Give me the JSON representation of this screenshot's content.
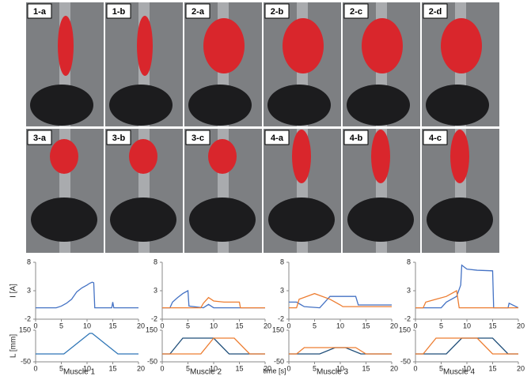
{
  "photos": {
    "labels": [
      "1-a",
      "1-b",
      "2-a",
      "2-b",
      "2-c",
      "2-d",
      "3-a",
      "3-b",
      "3-c",
      "4-a",
      "4-b",
      "4-c"
    ]
  },
  "chart_data": [
    {
      "type": "line",
      "y_label": "I [A]",
      "xlim": [
        0,
        20
      ],
      "xticks": [
        0,
        5,
        10,
        15,
        20
      ],
      "ylim": [
        -2,
        8
      ],
      "yticks": [
        -2,
        3,
        8
      ],
      "series": [
        {
          "color": "#4472c4",
          "x": [
            0,
            4,
            5,
            6,
            7,
            8,
            9,
            10,
            10.5,
            11,
            11.3,
            11.5,
            14.8,
            15,
            15.2,
            20
          ],
          "values": [
            0,
            0,
            0.3,
            0.8,
            1.5,
            2.8,
            3.5,
            4,
            4.3,
            4.5,
            4.4,
            0,
            0,
            1,
            0,
            0
          ]
        }
      ]
    },
    {
      "type": "line",
      "xlim": [
        0,
        20
      ],
      "xticks": [
        0,
        5,
        10,
        15,
        20
      ],
      "ylim": [
        -2,
        8
      ],
      "yticks": [
        -2,
        3,
        8
      ],
      "series": [
        {
          "color": "#4472c4",
          "x": [
            0,
            1.5,
            2,
            3,
            4,
            5,
            5.2,
            8,
            9,
            10,
            14,
            20
          ],
          "values": [
            0,
            0,
            1,
            1.8,
            2.5,
            3,
            0.3,
            0,
            0.6,
            0,
            0,
            0
          ]
        },
        {
          "color": "#ed7d31",
          "x": [
            0,
            7.5,
            8,
            9,
            10,
            12,
            15,
            15.2,
            20
          ],
          "values": [
            0,
            0,
            0.8,
            1.8,
            1.2,
            1,
            1,
            0,
            0
          ]
        }
      ]
    },
    {
      "type": "line",
      "xlim": [
        0,
        20
      ],
      "xticks": [
        0,
        5,
        10,
        15,
        20
      ],
      "ylim": [
        -2,
        8
      ],
      "yticks": [
        -2,
        3,
        8
      ],
      "series": [
        {
          "color": "#4472c4",
          "x": [
            0,
            1.5,
            3,
            6,
            7,
            8,
            13,
            13.5,
            20
          ],
          "values": [
            1,
            1,
            0.2,
            0,
            1,
            2,
            2,
            0.5,
            0.5
          ]
        },
        {
          "color": "#ed7d31",
          "x": [
            0,
            1.5,
            2,
            5,
            8,
            10,
            10.5,
            20
          ],
          "values": [
            0,
            0,
            1.5,
            2.5,
            1.5,
            0.5,
            0.2,
            0.2
          ]
        }
      ]
    },
    {
      "type": "line",
      "xlim": [
        0,
        20
      ],
      "xticks": [
        0,
        5,
        10,
        15,
        20
      ],
      "ylim": [
        -2,
        8
      ],
      "yticks": [
        -2,
        3,
        8
      ],
      "series": [
        {
          "color": "#4472c4",
          "x": [
            0,
            5,
            6,
            8,
            8.8,
            9,
            10,
            12,
            15,
            15.2,
            18,
            18.2,
            20
          ],
          "values": [
            0,
            0,
            1,
            2,
            4,
            7.5,
            6.8,
            6.6,
            6.5,
            0,
            0,
            0.8,
            0
          ]
        },
        {
          "color": "#ed7d31",
          "x": [
            0,
            1.5,
            2,
            4,
            6,
            8,
            8.5,
            20
          ],
          "values": [
            0,
            0,
            1,
            1.5,
            2,
            3,
            0,
            0
          ]
        }
      ]
    },
    {
      "type": "line",
      "title": "Muscle 1",
      "y_label": "L [mm]",
      "xlim": [
        0,
        20
      ],
      "xticks": [
        0,
        5,
        10,
        15,
        20
      ],
      "ylim": [
        -50,
        150
      ],
      "yticks": [
        -50,
        150
      ],
      "series": [
        {
          "color": "#2e75b6",
          "x": [
            0,
            5.5,
            10.5,
            11,
            16,
            20
          ],
          "values": [
            0,
            0,
            130,
            130,
            0,
            0
          ]
        }
      ]
    },
    {
      "type": "line",
      "title": "Muscle 2",
      "x_label": "time [s]",
      "xlim": [
        0,
        20
      ],
      "xticks": [
        0,
        5,
        10,
        15,
        20
      ],
      "ylim": [
        -50,
        150
      ],
      "yticks": [
        -50,
        150
      ],
      "series": [
        {
          "color": "#1f4e79",
          "x": [
            0,
            1.5,
            4,
            10,
            13,
            20
          ],
          "values": [
            0,
            0,
            100,
            100,
            0,
            0
          ]
        },
        {
          "color": "#ed7d31",
          "x": [
            0,
            7.5,
            10,
            14,
            17,
            20
          ],
          "values": [
            0,
            0,
            100,
            100,
            0,
            0
          ]
        }
      ]
    },
    {
      "type": "line",
      "title": "Muscle 3",
      "xlim": [
        0,
        20
      ],
      "xticks": [
        0,
        5,
        10,
        15,
        20
      ],
      "ylim": [
        -50,
        150
      ],
      "yticks": [
        -50,
        150
      ],
      "series": [
        {
          "color": "#1f4e79",
          "x": [
            0,
            6,
            9,
            11,
            14,
            20
          ],
          "values": [
            0,
            0,
            40,
            40,
            0,
            0
          ]
        },
        {
          "color": "#ed7d31",
          "x": [
            0,
            1.5,
            3,
            13,
            15,
            20
          ],
          "values": [
            0,
            0,
            40,
            40,
            0,
            0
          ]
        }
      ]
    },
    {
      "type": "line",
      "title": "Muscle 4",
      "xlim": [
        0,
        20
      ],
      "xticks": [
        0,
        5,
        10,
        15,
        20
      ],
      "ylim": [
        -50,
        150
      ],
      "yticks": [
        -50,
        150
      ],
      "series": [
        {
          "color": "#1f4e79",
          "x": [
            0,
            6,
            9,
            15,
            18,
            20
          ],
          "values": [
            0,
            0,
            100,
            100,
            0,
            0
          ]
        },
        {
          "color": "#ed7d31",
          "x": [
            0,
            1.5,
            4,
            12,
            15,
            20
          ],
          "values": [
            0,
            0,
            100,
            100,
            0,
            0
          ]
        }
      ]
    }
  ]
}
